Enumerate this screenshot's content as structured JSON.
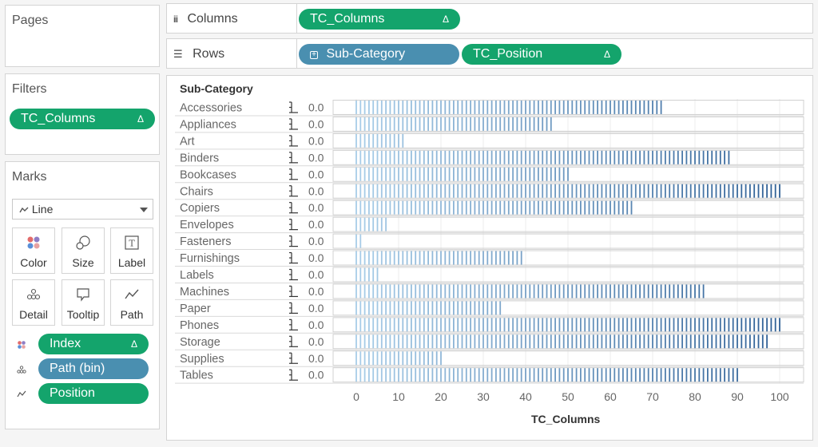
{
  "pages": {
    "title": "Pages"
  },
  "filters": {
    "title": "Filters",
    "pill": {
      "label": "TC_Columns",
      "delta": "Δ"
    }
  },
  "marks": {
    "title": "Marks",
    "type": "Line",
    "buttons": [
      {
        "label": "Color",
        "icon": "color-icon"
      },
      {
        "label": "Size",
        "icon": "size-icon"
      },
      {
        "label": "Label",
        "icon": "label-icon"
      },
      {
        "label": "Detail",
        "icon": "detail-icon"
      },
      {
        "label": "Tooltip",
        "icon": "tooltip-icon"
      },
      {
        "label": "Path",
        "icon": "path-icon"
      }
    ],
    "encodings": [
      {
        "label": "Index",
        "delta": "Δ",
        "color": "green",
        "icon": "color-icon"
      },
      {
        "label": "Path (bin)",
        "delta": "",
        "color": "blue",
        "icon": "detail-icon"
      },
      {
        "label": "Position",
        "delta": "",
        "color": "green",
        "icon": "path-icon"
      }
    ]
  },
  "columns_shelf": {
    "label": "Columns",
    "pill": {
      "label": "TC_Columns",
      "delta": "Δ"
    }
  },
  "rows_shelf": {
    "label": "Rows",
    "pills": [
      {
        "label": "Sub-Category",
        "delta": "",
        "color": "blue"
      },
      {
        "label": "TC_Position",
        "delta": "Δ",
        "color": "green"
      }
    ]
  },
  "chart_data": {
    "type": "bar",
    "header": "Sub-Category",
    "xlabel": "TC_Columns",
    "xlim": [
      0,
      100
    ],
    "xticks": [
      0,
      10,
      20,
      30,
      40,
      50,
      60,
      70,
      80,
      90,
      100
    ],
    "row_axis_label": "0.0",
    "categories": [
      "Accessories",
      "Appliances",
      "Art",
      "Binders",
      "Bookcases",
      "Chairs",
      "Copiers",
      "Envelopes",
      "Fasteners",
      "Furnishings",
      "Labels",
      "Machines",
      "Paper",
      "Phones",
      "Storage",
      "Supplies",
      "Tables"
    ],
    "values": [
      72,
      46,
      11,
      88,
      50,
      100,
      65,
      7,
      1,
      39,
      5,
      82,
      34,
      100,
      97,
      20,
      90
    ],
    "colors": {
      "light": "#a8cde8",
      "dark": "#2f6096"
    }
  }
}
